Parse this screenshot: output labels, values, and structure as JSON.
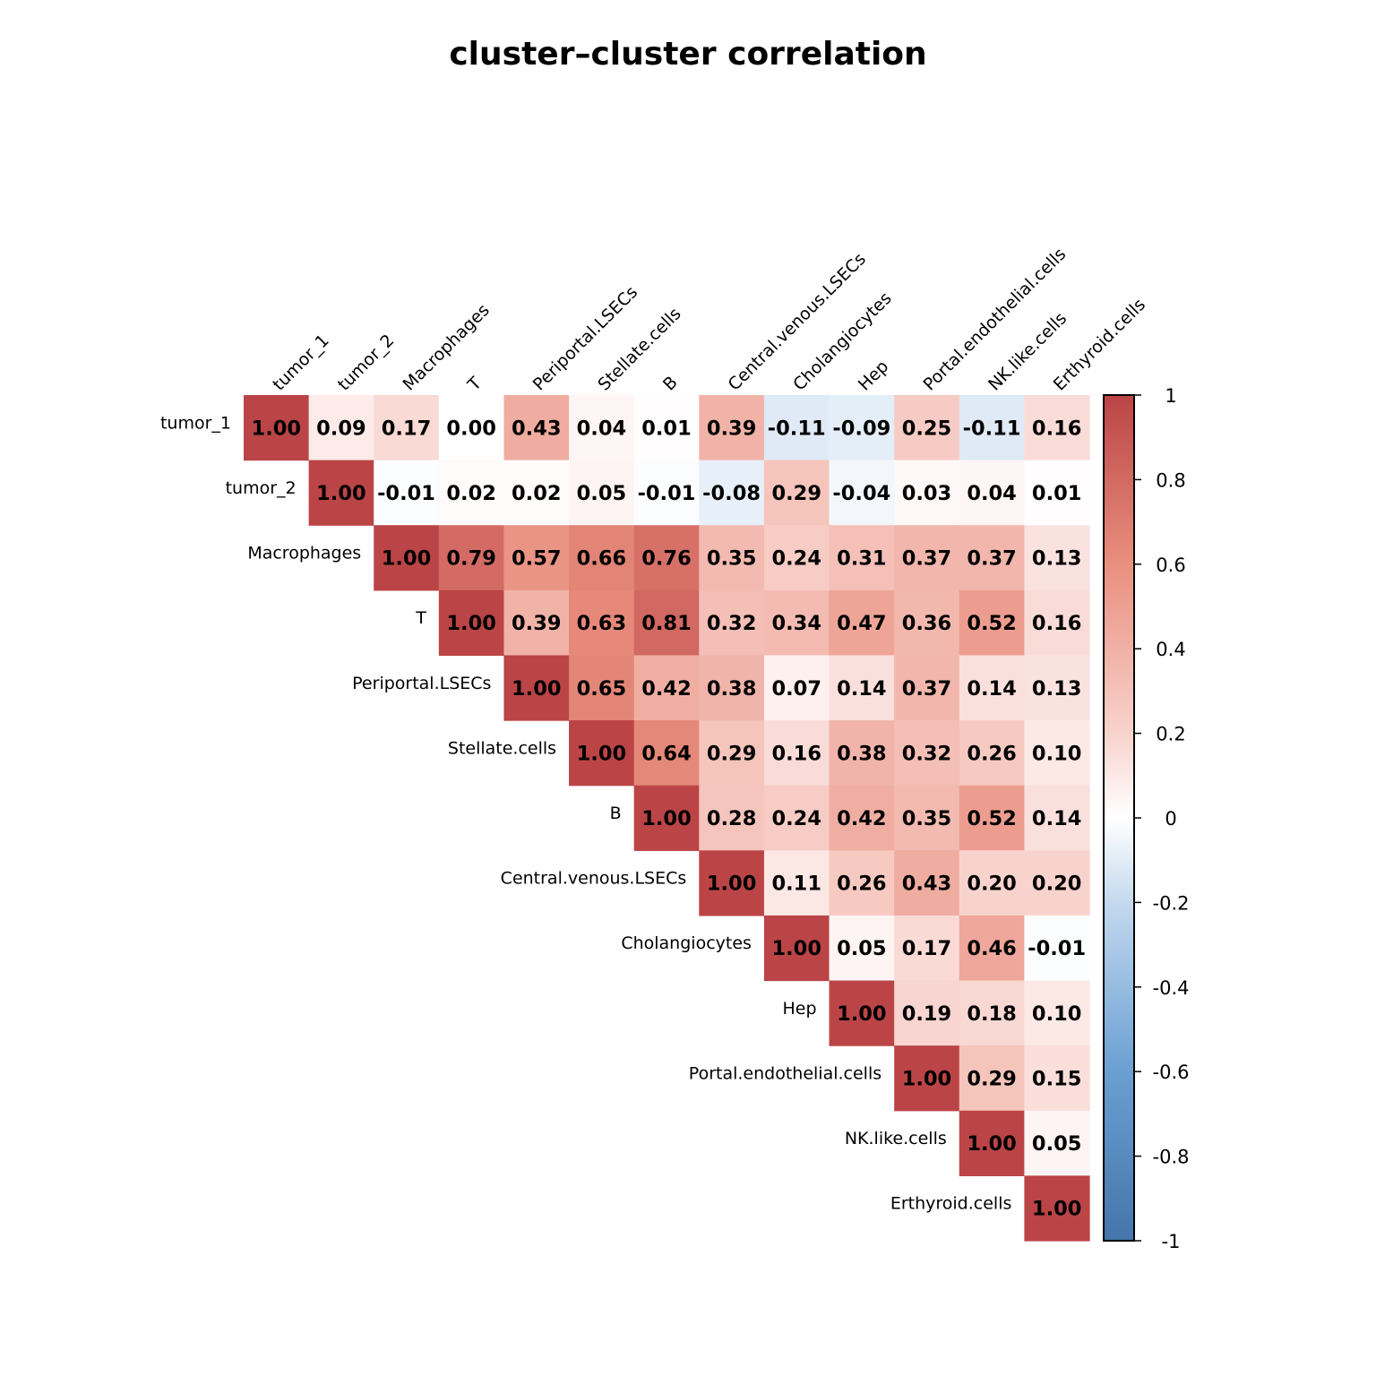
{
  "chart_data": {
    "type": "heatmap",
    "title": "cluster–cluster correlation",
    "subtype": "upper-triangle correlation matrix",
    "labels": [
      "tumor_1",
      "tumor_2",
      "Macrophages",
      "T",
      "Periportal.LSECs",
      "Stellate.cells",
      "B",
      "Central.venous.LSECs",
      "Cholangiocytes",
      "Hep",
      "Portal.endothelial.cells",
      "NK.like.cells",
      "Erthyroid.cells"
    ],
    "matrix": [
      [
        1.0,
        0.09,
        0.17,
        0.0,
        0.43,
        0.04,
        0.01,
        0.39,
        -0.11,
        -0.09,
        0.25,
        -0.11,
        0.16
      ],
      [
        null,
        1.0,
        -0.01,
        0.02,
        0.02,
        0.05,
        -0.01,
        -0.08,
        0.29,
        -0.04,
        0.03,
        0.04,
        0.01
      ],
      [
        null,
        null,
        1.0,
        0.79,
        0.57,
        0.66,
        0.76,
        0.35,
        0.24,
        0.31,
        0.37,
        0.37,
        0.13
      ],
      [
        null,
        null,
        null,
        1.0,
        0.39,
        0.63,
        0.81,
        0.32,
        0.34,
        0.47,
        0.36,
        0.52,
        0.16
      ],
      [
        null,
        null,
        null,
        null,
        1.0,
        0.65,
        0.42,
        0.38,
        0.07,
        0.14,
        0.37,
        0.14,
        0.13
      ],
      [
        null,
        null,
        null,
        null,
        null,
        1.0,
        0.64,
        0.29,
        0.16,
        0.38,
        0.32,
        0.26,
        0.1
      ],
      [
        null,
        null,
        null,
        null,
        null,
        null,
        1.0,
        0.28,
        0.24,
        0.42,
        0.35,
        0.52,
        0.14
      ],
      [
        null,
        null,
        null,
        null,
        null,
        null,
        null,
        1.0,
        0.11,
        0.26,
        0.43,
        0.2,
        0.2
      ],
      [
        null,
        null,
        null,
        null,
        null,
        null,
        null,
        null,
        1.0,
        0.05,
        0.17,
        0.46,
        -0.01
      ],
      [
        null,
        null,
        null,
        null,
        null,
        null,
        null,
        null,
        null,
        1.0,
        0.19,
        0.18,
        0.1
      ],
      [
        null,
        null,
        null,
        null,
        null,
        null,
        null,
        null,
        null,
        null,
        1.0,
        0.29,
        0.15
      ],
      [
        null,
        null,
        null,
        null,
        null,
        null,
        null,
        null,
        null,
        null,
        null,
        1.0,
        0.05
      ],
      [
        null,
        null,
        null,
        null,
        null,
        null,
        null,
        null,
        null,
        null,
        null,
        null,
        1.0
      ]
    ],
    "value_format": "2 decimals",
    "color_scale": {
      "range": [
        -1,
        1
      ],
      "stops": [
        {
          "value": -1,
          "color": "#4575aa"
        },
        {
          "value": -0.6,
          "color": "#6a9fd2"
        },
        {
          "value": -0.2,
          "color": "#c4d9ef"
        },
        {
          "value": 0,
          "color": "#ffffff"
        },
        {
          "value": 0.2,
          "color": "#f8d3cd"
        },
        {
          "value": 0.6,
          "color": "#e98f7f"
        },
        {
          "value": 1,
          "color": "#bb4446"
        }
      ]
    },
    "colorbar": {
      "position": "right",
      "ticks": [
        "1",
        "0.8",
        "0.6",
        "0.4",
        "0.2",
        "0",
        "-0.2",
        "-0.4",
        "-0.6",
        "-0.8",
        "-1"
      ],
      "tick_values": [
        1,
        0.8,
        0.6,
        0.4,
        0.2,
        0,
        -0.2,
        -0.4,
        -0.6,
        -0.8,
        -1
      ]
    },
    "xlabel": "",
    "ylabel": "",
    "grid": false
  }
}
